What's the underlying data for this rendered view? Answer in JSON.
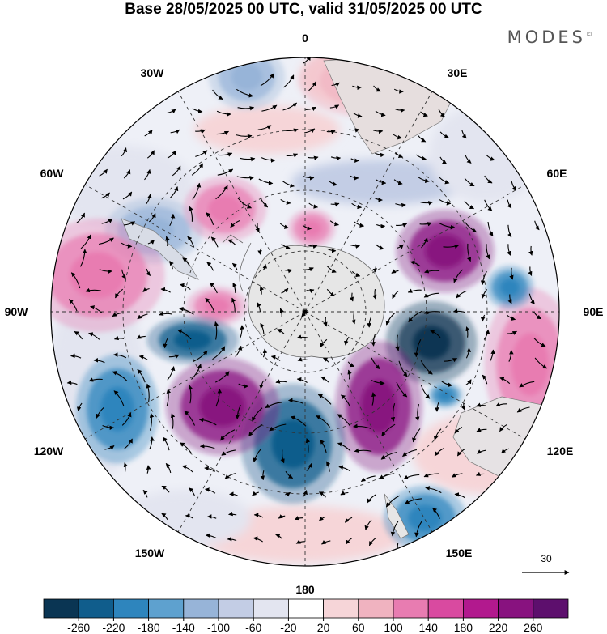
{
  "title": "Base 28/05/2025 00 UTC, valid 31/05/2025 00 UTC",
  "brand": "MODES",
  "brand_mark": "©",
  "longitude_labels": {
    "lon_0": "0",
    "lon_30e": "30E",
    "lon_60e": "60E",
    "lon_90e": "90E",
    "lon_120e": "120E",
    "lon_150e": "150E",
    "lon_180": "180",
    "lon_150w": "150W",
    "lon_120w": "120W",
    "lon_90w": "90W",
    "lon_60w": "60W",
    "lon_30w": "30W"
  },
  "vector_reference": {
    "value": "30"
  },
  "colorbar": {
    "ticks": [
      "-260",
      "-220",
      "-180",
      "-140",
      "-100",
      "-60",
      "-20",
      "20",
      "60",
      "100",
      "140",
      "180",
      "220",
      "260"
    ],
    "colors": [
      "#0a3553",
      "#105d8c",
      "#2e85bd",
      "#5ea1cf",
      "#97b4d8",
      "#c3cde5",
      "#e3e5f0",
      "#ffffff",
      "#f6d5d8",
      "#f0b3c0",
      "#e87cb1",
      "#d94aa0",
      "#b2198e",
      "#88127f",
      "#5d0f6d"
    ]
  },
  "map": {
    "projection": "south-polar-stereographic",
    "field": "anomaly",
    "features": [
      {
        "name": "anomaly-positive-top",
        "color": "#f0b3c0"
      },
      {
        "name": "anomaly-negative-upper-left",
        "color": "#97b4d8"
      },
      {
        "name": "anomaly-positive-upper-left",
        "color": "#e87cb1"
      },
      {
        "name": "anomaly-strong-positive-east",
        "color": "#88127f"
      },
      {
        "name": "anomaly-strong-negative-east",
        "color": "#0a3553"
      },
      {
        "name": "anomaly-positive-far-east",
        "color": "#e87cb1"
      },
      {
        "name": "anomaly-strong-positive-south",
        "color": "#88127f"
      },
      {
        "name": "anomaly-strong-negative-south",
        "color": "#105d8c"
      },
      {
        "name": "anomaly-strong-positive-southwest",
        "color": "#88127f"
      },
      {
        "name": "anomaly-negative-west",
        "color": "#2e85bd"
      },
      {
        "name": "anomaly-positive-far-west",
        "color": "#e87cb1"
      },
      {
        "name": "anomaly-negative-west-center",
        "color": "#105d8c"
      },
      {
        "name": "anomaly-negative-southeast",
        "color": "#2e85bd"
      },
      {
        "name": "antarctica-landmass",
        "color": "#e6e6e6"
      }
    ]
  }
}
